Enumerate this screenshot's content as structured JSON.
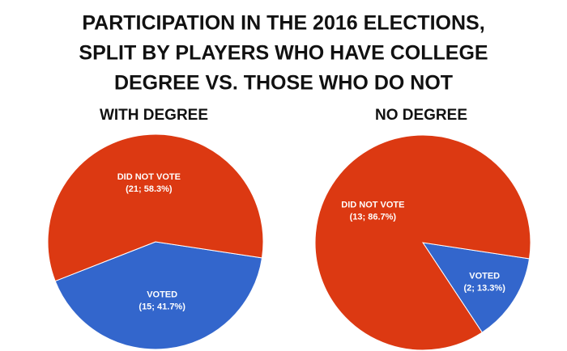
{
  "title": [
    "PARTICIPATION IN THE 2016 ELECTIONS,",
    "SPLIT BY PLAYERS WHO HAVE COLLEGE",
    "DEGREE VS. THOSE WHO DO NOT"
  ],
  "chart_data": [
    {
      "type": "pie",
      "title": "WITH DEGREE",
      "categories": [
        "DID NOT VOTE",
        "VOTED"
      ],
      "values": [
        21,
        15
      ],
      "value_labels": [
        "(21; 58.3%)",
        "(15; 41.7%)"
      ],
      "colors": [
        "#dc3912",
        "#3366cc"
      ]
    },
    {
      "type": "pie",
      "title": "NO DEGREE",
      "categories": [
        "DID NOT VOTE",
        "VOTED"
      ],
      "values": [
        13,
        2
      ],
      "value_labels": [
        "(13; 86.7%)",
        "(2; 13.3%)"
      ],
      "colors": [
        "#dc3912",
        "#3366cc"
      ]
    }
  ]
}
